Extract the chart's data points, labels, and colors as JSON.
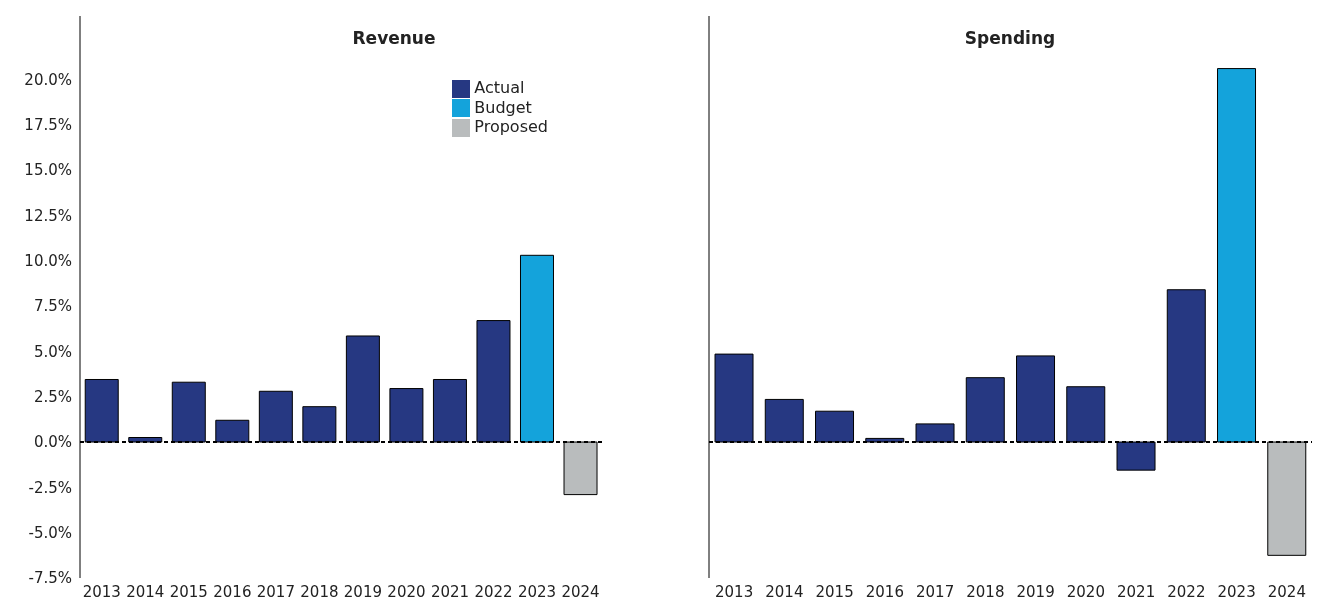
{
  "chart_data": [
    {
      "type": "bar",
      "title": "Revenue",
      "stacked": true,
      "categories": [
        "2013",
        "2014",
        "2015",
        "2016",
        "2017",
        "2018",
        "2019",
        "2020",
        "2021",
        "2022",
        "2023",
        "2024"
      ],
      "series": [
        {
          "name": "Actual",
          "color": "#263882",
          "values": [
            3.45,
            0.25,
            3.3,
            1.2,
            2.8,
            1.95,
            5.85,
            2.95,
            3.45,
            6.7,
            null,
            null
          ]
        },
        {
          "name": "Budget",
          "color": "#14a3db",
          "values": [
            null,
            null,
            null,
            null,
            null,
            null,
            null,
            null,
            null,
            null,
            10.3,
            null
          ]
        },
        {
          "name": "Proposed",
          "color": "#b9bcbd",
          "values": [
            null,
            null,
            null,
            null,
            null,
            null,
            null,
            null,
            null,
            null,
            null,
            -2.9
          ]
        }
      ],
      "ylim": [
        -7.5,
        23.5
      ],
      "yticks": [
        {
          "value": -7.5,
          "label": "-7.5%"
        },
        {
          "value": -5,
          "label": "-5.0%"
        },
        {
          "value": -2.5,
          "label": "-2.5%"
        },
        {
          "value": 0,
          "label": "0.0%"
        },
        {
          "value": 2.5,
          "label": "2.5%"
        },
        {
          "value": 5,
          "label": "5.0%"
        },
        {
          "value": 7.5,
          "label": "7.5%"
        },
        {
          "value": 10,
          "label": "10.0%"
        },
        {
          "value": 12.5,
          "label": "12.5%"
        },
        {
          "value": 15,
          "label": "15.0%"
        },
        {
          "value": 17.5,
          "label": "17.5%"
        },
        {
          "value": 20,
          "label": "20.0%"
        }
      ],
      "ref_lines": [
        {
          "axis": "y",
          "value": 0,
          "color": "#000000",
          "line_style": "dashed"
        }
      ],
      "grid": false,
      "legend": "top right"
    },
    {
      "type": "bar",
      "title": "Spending",
      "stacked": true,
      "categories": [
        "2013",
        "2014",
        "2015",
        "2016",
        "2017",
        "2018",
        "2019",
        "2020",
        "2021",
        "2022",
        "2023",
        "2024"
      ],
      "series": [
        {
          "color": "#263882",
          "values": [
            4.85,
            2.35,
            1.7,
            0.2,
            1.0,
            3.55,
            4.75,
            3.05,
            -1.55,
            8.4,
            null,
            null
          ]
        },
        {
          "color": "#14a3db",
          "values": [
            null,
            null,
            null,
            null,
            null,
            null,
            null,
            null,
            null,
            null,
            20.6,
            null
          ]
        },
        {
          "color": "#b9bcbd",
          "values": [
            null,
            null,
            null,
            null,
            null,
            null,
            null,
            null,
            null,
            null,
            null,
            -6.25
          ]
        }
      ],
      "ylim": [
        -7.5,
        23.5
      ],
      "ref_lines": [
        {
          "axis": "y",
          "value": 0,
          "color": "#000000",
          "line_style": "dashed"
        }
      ],
      "grid": false,
      "legend": false,
      "tick_labels": "x"
    }
  ]
}
